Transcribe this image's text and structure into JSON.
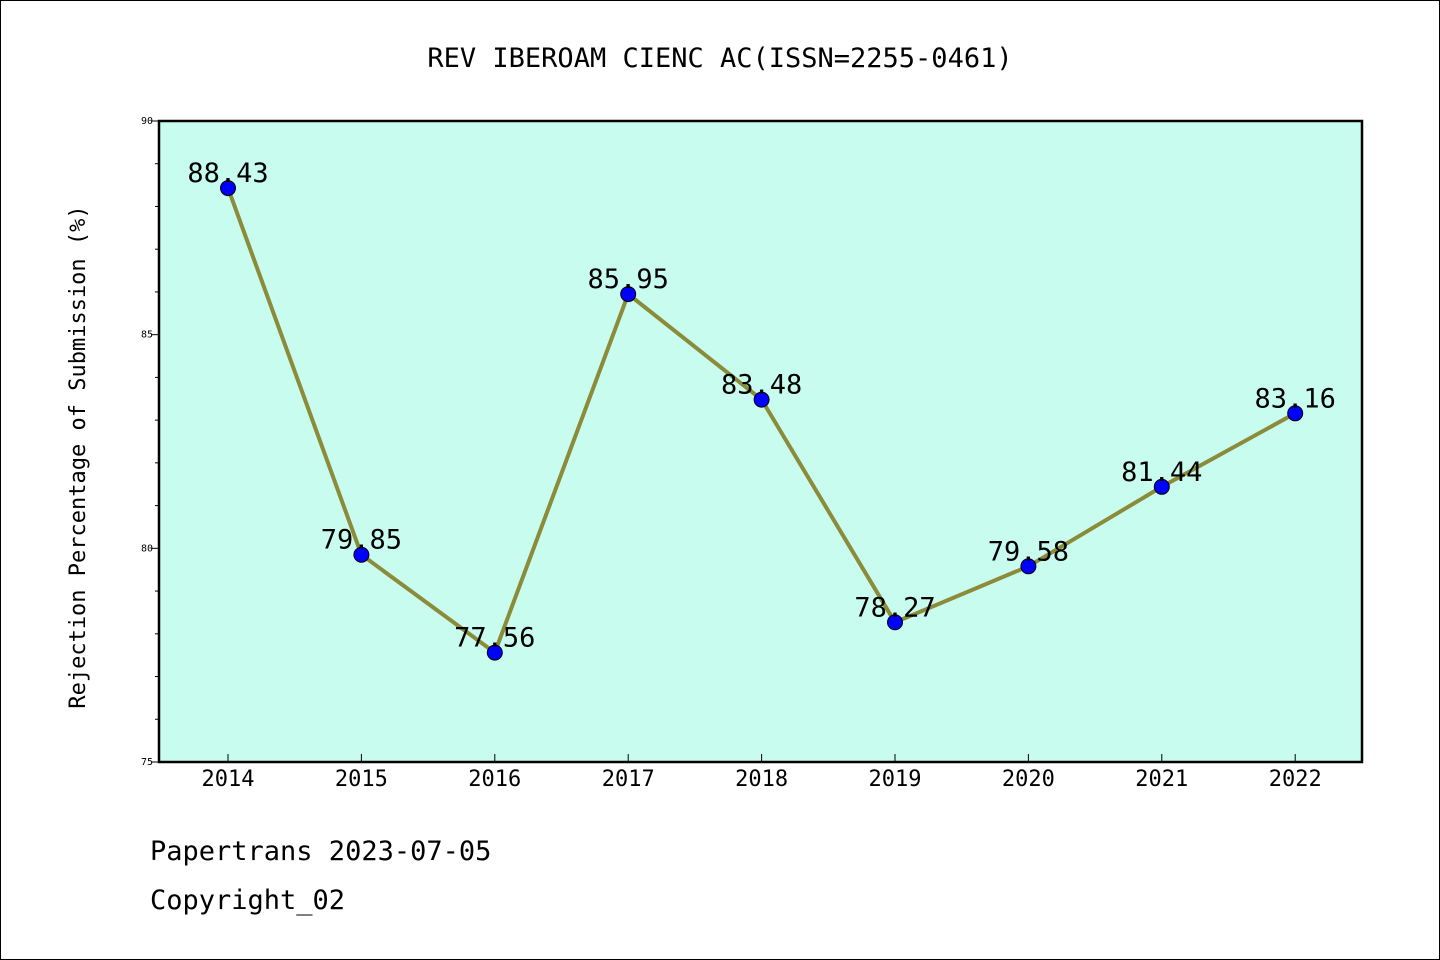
{
  "chart_data": {
    "type": "line",
    "title": "REV IBEROAM CIENC AC(ISSN=2255-0461)",
    "xlabel": "",
    "ylabel": "Rejection Percentage of Submission (%)",
    "categories": [
      "2014",
      "2015",
      "2016",
      "2017",
      "2018",
      "2019",
      "2020",
      "2021",
      "2022"
    ],
    "series": [
      {
        "values": [
          88.43,
          79.85,
          77.56,
          85.95,
          83.48,
          78.27,
          79.58,
          81.44,
          83.16
        ],
        "labels": [
          "88.43",
          "79.85",
          "77.56",
          "85.95",
          "83.48",
          "78.27",
          "79.58",
          "81.44",
          "83.16"
        ],
        "line_color": "#8b8b3a",
        "marker_color": "#0000ff"
      }
    ],
    "ylim": [
      75,
      90
    ],
    "yticks": [
      "75",
      "80",
      "85",
      "90"
    ],
    "grid": false,
    "plot_background": "#c8fcee"
  },
  "footer": {
    "line1": "Papertrans 2023-07-05",
    "line2": "Copyright_02"
  }
}
